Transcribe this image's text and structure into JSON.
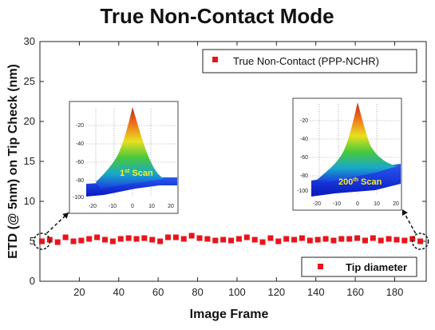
{
  "chart_data": {
    "type": "scatter",
    "title": "True Non-Contact Mode",
    "xlabel": "Image Frame",
    "ylabel": "ETD (@ 5nm) on Tip Check (nm)",
    "xlim": [
      0,
      196
    ],
    "ylim": [
      0,
      30
    ],
    "x_ticks": [
      20,
      40,
      60,
      80,
      100,
      120,
      140,
      160,
      180
    ],
    "y_ticks": [
      0,
      5,
      10,
      15,
      20,
      25,
      30
    ],
    "grid": false,
    "color": "#e8141b",
    "series": [
      {
        "name": "Tip diameter",
        "x": [
          1,
          5,
          9,
          13,
          17,
          21,
          25,
          29,
          33,
          37,
          41,
          45,
          49,
          53,
          57,
          61,
          65,
          69,
          73,
          77,
          81,
          85,
          89,
          93,
          97,
          101,
          105,
          109,
          113,
          117,
          121,
          125,
          129,
          133,
          137,
          141,
          145,
          149,
          153,
          157,
          161,
          165,
          169,
          173,
          177,
          181,
          185,
          189,
          193
        ],
        "y": [
          5.0,
          5.2,
          4.9,
          5.5,
          5.0,
          5.1,
          5.3,
          5.5,
          5.2,
          5.0,
          5.3,
          5.4,
          5.3,
          5.4,
          5.2,
          5.0,
          5.5,
          5.5,
          5.3,
          5.7,
          5.4,
          5.3,
          5.1,
          5.2,
          5.1,
          5.3,
          5.5,
          5.2,
          4.9,
          5.4,
          5.0,
          5.3,
          5.2,
          5.4,
          5.1,
          5.2,
          5.3,
          5.1,
          5.3,
          5.3,
          5.4,
          5.1,
          5.4,
          5.1,
          5.3,
          5.2,
          5.1,
          5.3,
          5.0
        ]
      }
    ],
    "legends": [
      {
        "label": "True Non-Contact (PPP-NCHR)",
        "placement": "top-right"
      },
      {
        "label": "Tip diameter",
        "placement": "bottom-right"
      }
    ],
    "insets": [
      {
        "label": "1st Scan",
        "label_main": "1",
        "label_sup": "st",
        "label_rest": " Scan",
        "x_ticks": [
          "-20",
          "-10",
          "0",
          "10",
          "20"
        ],
        "y_ticks": [
          "-20",
          "-40",
          "-60",
          "-80",
          "-100"
        ],
        "points_to_frame": 1
      },
      {
        "label": "200th Scan",
        "label_main": "200",
        "label_sup": "th",
        "label_rest": " Scan",
        "x_ticks": [
          "-20",
          "-10",
          "0",
          "10",
          "20"
        ],
        "y_ticks": [
          "-20",
          "-40",
          "-60",
          "-80",
          "-100"
        ],
        "points_to_frame": 193
      }
    ]
  }
}
